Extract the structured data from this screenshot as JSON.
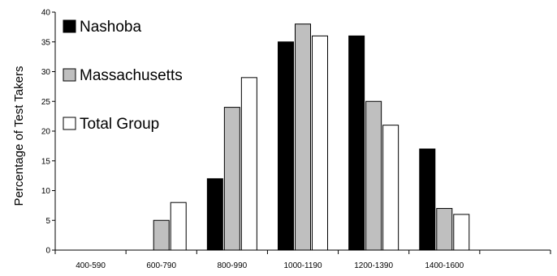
{
  "chart_data": {
    "type": "bar",
    "title": "",
    "xlabel": "",
    "ylabel": "Percentage of Test Takers",
    "ylim": [
      0,
      40
    ],
    "yticks": [
      0,
      5,
      10,
      15,
      20,
      25,
      30,
      35,
      40
    ],
    "categories": [
      "400-590",
      "600-790",
      "800-990",
      "1000-1190",
      "1200-1390",
      "1400-1600",
      ""
    ],
    "grid": false,
    "legend": "top-left",
    "series": [
      {
        "name": "Nashoba",
        "color": "#000000",
        "values": [
          0,
          0,
          12,
          35,
          36,
          17,
          0
        ]
      },
      {
        "name": "Massachusetts",
        "color": "#bfbfbf",
        "values": [
          0,
          5,
          24,
          38,
          25,
          7,
          0
        ]
      },
      {
        "name": "Total Group",
        "color": "#ffffff",
        "values": [
          0,
          8,
          29,
          36,
          21,
          6,
          0
        ]
      }
    ]
  }
}
